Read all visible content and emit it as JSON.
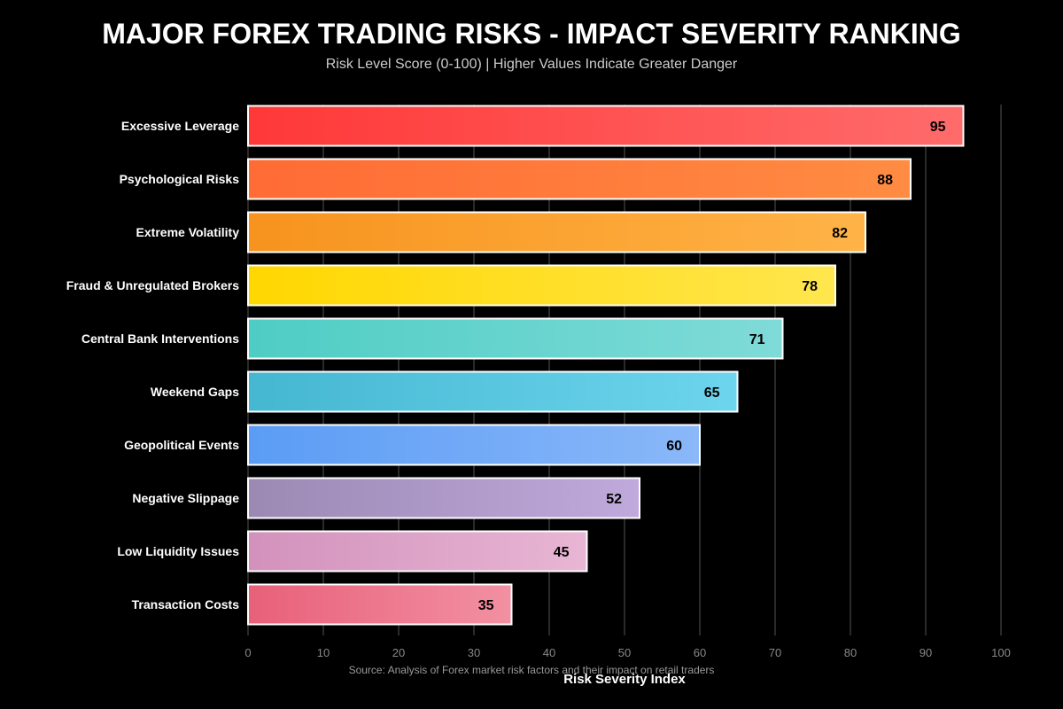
{
  "chart_data": {
    "type": "bar",
    "orientation": "horizontal",
    "title": "MAJOR FOREX TRADING RISKS - IMPACT SEVERITY RANKING",
    "subtitle": "Risk Level Score (0-100) | Higher Values Indicate Greater Danger",
    "xlabel": "Risk Severity Index",
    "source": "Source: Analysis of Forex market risk factors and their impact on retail traders",
    "xlim": [
      0,
      100
    ],
    "xticks": [
      0,
      10,
      20,
      30,
      40,
      50,
      60,
      70,
      80,
      90,
      100
    ],
    "grid": true,
    "categories": [
      "Excessive Leverage",
      "Psychological Risks",
      "Extreme Volatility",
      "Fraud & Unregulated Brokers",
      "Central Bank Interventions",
      "Weekend Gaps",
      "Geopolitical Events",
      "Negative Slippage",
      "Low Liquidity Issues",
      "Transaction Costs"
    ],
    "values": [
      95,
      88,
      82,
      78,
      71,
      65,
      60,
      52,
      45,
      35
    ],
    "colors": [
      [
        "#ff3838",
        "#ff6b6b"
      ],
      [
        "#ff6b35",
        "#ff8c42"
      ],
      [
        "#f7931e",
        "#ffb347"
      ],
      [
        "#ffd700",
        "#ffe64d"
      ],
      [
        "#4ecdc4",
        "#80dbd8"
      ],
      [
        "#45b7d1",
        "#6dd5ed"
      ],
      [
        "#5b9cf5",
        "#8ab8f9"
      ],
      [
        "#9b89b3",
        "#c0a9dc"
      ],
      [
        "#d291bc",
        "#e8b6d4"
      ],
      [
        "#e8607a",
        "#f290a2"
      ]
    ]
  }
}
